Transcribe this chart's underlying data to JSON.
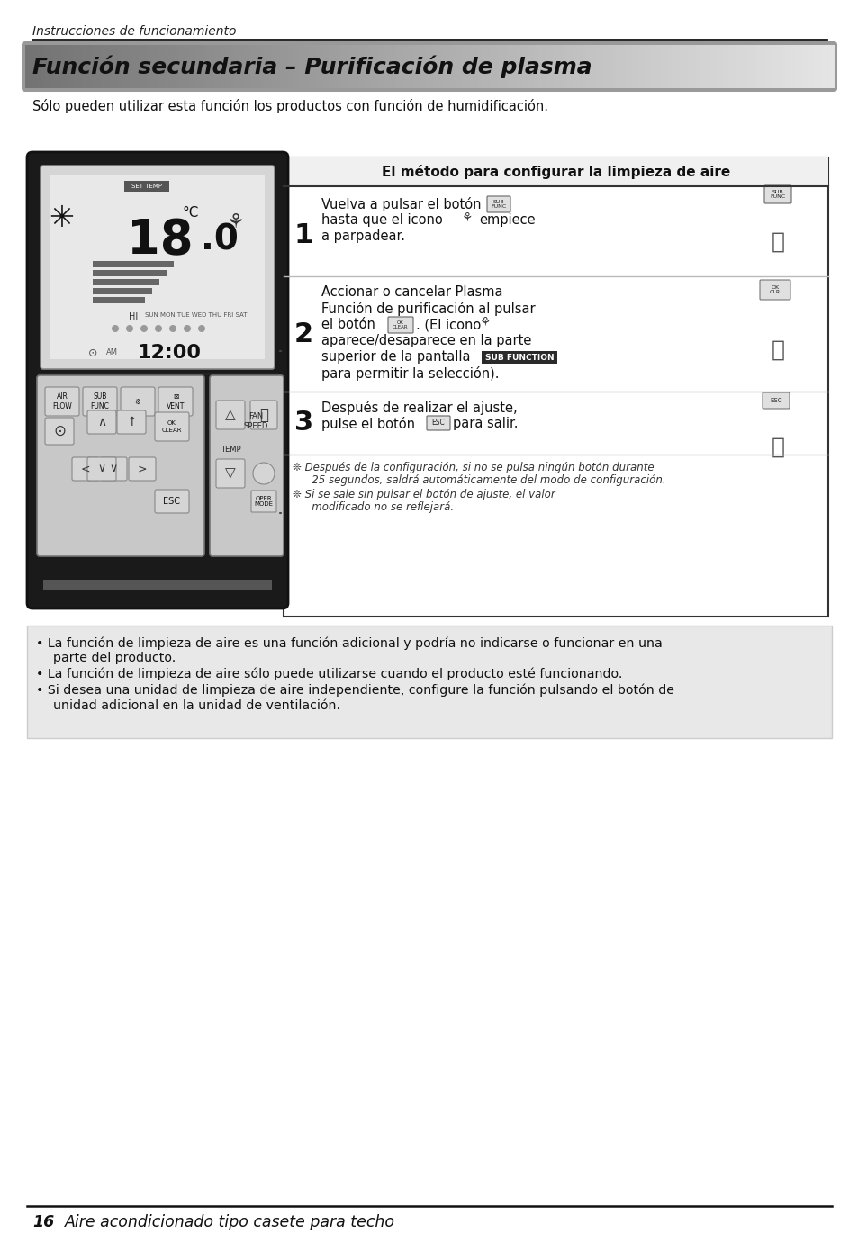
{
  "page_bg": "#ffffff",
  "header_italic": "Instrucciones de funcionamiento",
  "title_text": "Función secundaria – Purificación de plasma",
  "subtitle": "Sólo pueden utilizar esta función los productos con función de humidificación.",
  "box_title": "El método para configurar la limpieza de aire",
  "step1_line1": "Vuelva a pulsar el botón",
  "step1_line2": "hasta que el icono",
  "step1_line2b": "empiece",
  "step1_line3": "a parpadear.",
  "step2_line1": "Accionar o cancelar Plasma",
  "step2_line2": "Función de purificación al pulsar",
  "step2_line3": "el botón",
  "step2_line3b": ". (El icono",
  "step2_line4": "aparece/desaparece en la parte",
  "step2_line5": "superior de la pantalla",
  "step2_subfunc": "SUB FUNCTION",
  "step2_line6": "para permitir la selección).",
  "step3_line1": "Después de realizar el ajuste,",
  "step3_line2": "pulse el botón",
  "step3_line2b": "para salir.",
  "note1a": "❊ Después de la configuración, si no se pulsa ningún botón durante",
  "note1b": "   25 segundos, saldrá automáticamente del modo de configuración.",
  "note2a": "❊ Si se sale sin pulsar el botón de ajuste, el valor",
  "note2b": "   modificado no se reflejará.",
  "bullet1a": "• La función de limpieza de aire es una función adicional y podría no indicarse o funcionar en una",
  "bullet1b": "  parte del producto.",
  "bullet2": "• La función de limpieza de aire sólo puede utilizarse cuando el producto esté funcionando.",
  "bullet3a": "• Si desea una unidad de limpieza de aire independiente, configure la función pulsando el botón de",
  "bullet3b": "  unidad adicional en la unidad de ventilación.",
  "footer_num": "16",
  "footer_text": "Aire acondicionado tipo casete para techo"
}
